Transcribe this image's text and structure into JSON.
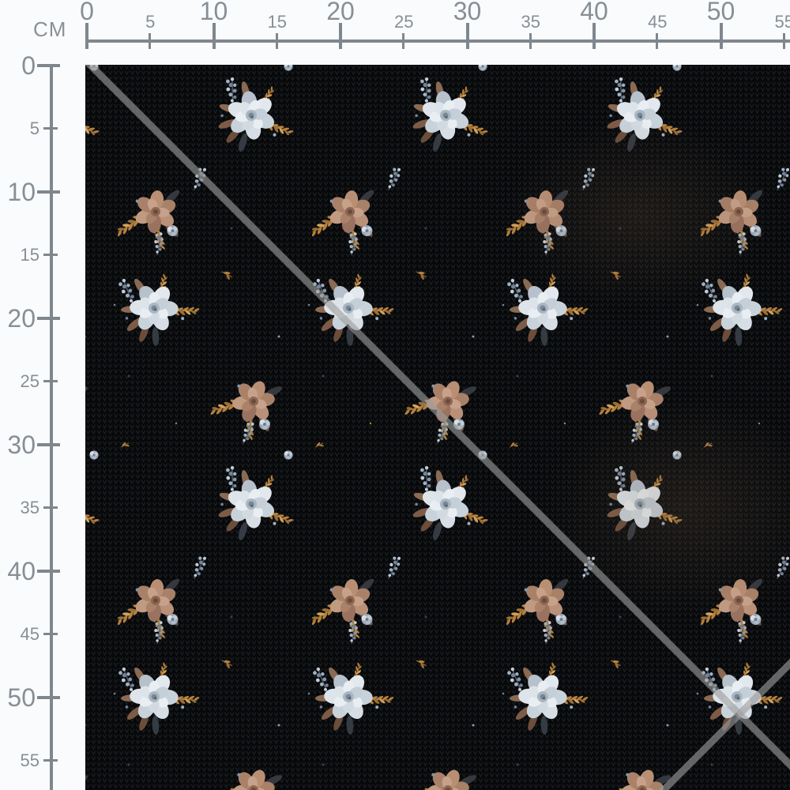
{
  "page": {
    "description": "Fabric swatch preview with centimeter measurement rulers"
  },
  "ruler": {
    "unit_label": "CM",
    "top_tick_values_cm": [
      0,
      5,
      10,
      15,
      20,
      25,
      30,
      35,
      40,
      45,
      50,
      55
    ],
    "left_tick_values_cm": [
      0,
      5,
      10,
      15,
      20,
      25,
      30,
      35,
      40,
      45,
      50,
      55
    ],
    "line_color": "#7f878e",
    "label_color": "#878f96"
  },
  "fabric": {
    "name": "black vintage floral knit fabric",
    "base_color": "#07080a",
    "knit_stitch_color": "#191c1f",
    "palette": {
      "rose_white": [
        "#e2e8ed",
        "#c8d2db",
        "#aab7c3"
      ],
      "rose_tan": [
        "#c19a82",
        "#a98068",
        "#8d6752"
      ],
      "leaf_brown": "#7d5b47",
      "sprig_gold": "#b5813e",
      "accent_blue_gray": "#9fb0c1"
    },
    "watermark": {
      "color": "#9d9d9d",
      "description": "diagonal crossed guard lines over swatch"
    }
  }
}
